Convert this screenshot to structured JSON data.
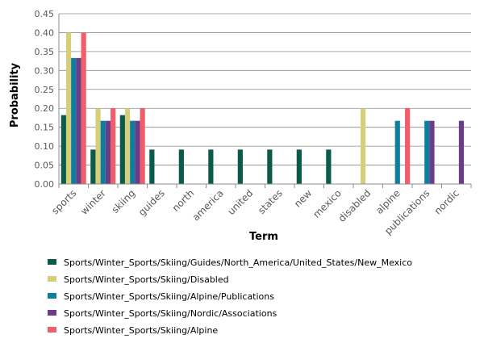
{
  "chart_data": {
    "type": "bar",
    "title": "",
    "xlabel": "Term",
    "ylabel": "Probability",
    "ylim": [
      0,
      0.45
    ],
    "yticks": [
      "0.00",
      "0.05",
      "0.10",
      "0.15",
      "0.20",
      "0.25",
      "0.30",
      "0.35",
      "0.40",
      "0.45"
    ],
    "grid": true,
    "legend_position": "bottom",
    "categories": [
      "sports",
      "winter",
      "skiing",
      "guides",
      "north",
      "america",
      "united",
      "states",
      "new",
      "mexico",
      "disabled",
      "alpine",
      "publications",
      "nordic"
    ],
    "series": [
      {
        "name": "Sports/Winter_Sports/Skiing/Guides/North_America/United_States/New_Mexico",
        "color": "#0b5a4a",
        "values": [
          0.182,
          0.091,
          0.182,
          0.091,
          0.091,
          0.091,
          0.091,
          0.091,
          0.091,
          0.091,
          0,
          0,
          0,
          0
        ]
      },
      {
        "name": "Sports/Winter_Sports/Skiing/Disabled",
        "color": "#d6cf7a",
        "values": [
          0.4,
          0.2,
          0.2,
          0,
          0,
          0,
          0,
          0,
          0,
          0,
          0.2,
          0,
          0,
          0
        ]
      },
      {
        "name": "Sports/Winter_Sports/Skiing/Alpine/Publications",
        "color": "#0e7e9e",
        "values": [
          0.333,
          0.167,
          0.167,
          0,
          0,
          0,
          0,
          0,
          0,
          0,
          0,
          0.167,
          0.167,
          0
        ]
      },
      {
        "name": "Sports/Winter_Sports/Skiing/Nordic/Associations",
        "color": "#6b3d88",
        "values": [
          0.333,
          0.167,
          0.167,
          0,
          0,
          0,
          0,
          0,
          0,
          0,
          0,
          0,
          0.167,
          0.167
        ]
      },
      {
        "name": "Sports/Winter_Sports/Skiing/Alpine",
        "color": "#f25d6b",
        "values": [
          0.4,
          0.2,
          0.2,
          0,
          0,
          0,
          0,
          0,
          0,
          0,
          0,
          0.2,
          0,
          0
        ]
      }
    ]
  }
}
